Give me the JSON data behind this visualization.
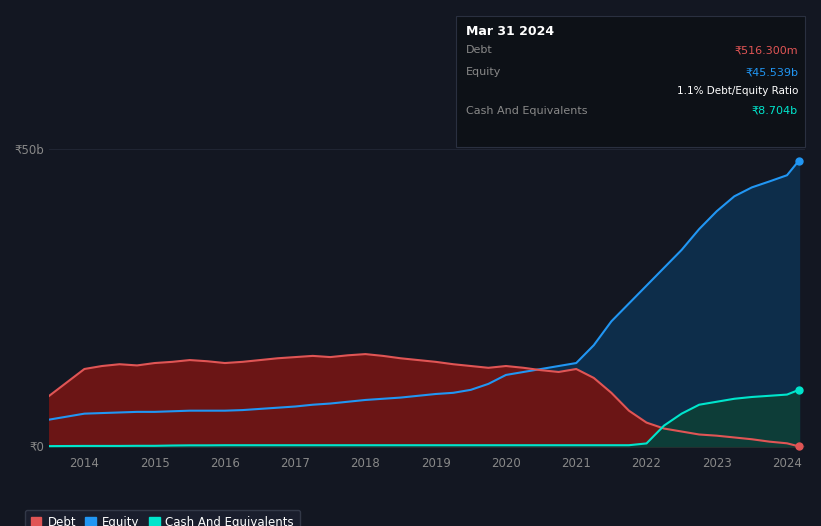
{
  "background_color": "#131722",
  "plot_bg_color": "#131722",
  "years": [
    2013.5,
    2014.0,
    2014.25,
    2014.5,
    2014.75,
    2015.0,
    2015.25,
    2015.5,
    2015.75,
    2016.0,
    2016.25,
    2016.5,
    2016.75,
    2017.0,
    2017.25,
    2017.5,
    2017.75,
    2018.0,
    2018.25,
    2018.5,
    2018.75,
    2019.0,
    2019.25,
    2019.5,
    2019.75,
    2020.0,
    2020.25,
    2020.5,
    2020.75,
    2021.0,
    2021.25,
    2021.5,
    2021.75,
    2022.0,
    2022.25,
    2022.5,
    2022.75,
    2023.0,
    2023.25,
    2023.5,
    2023.75,
    2024.0,
    2024.17
  ],
  "debt": [
    8.5,
    13.0,
    13.5,
    13.8,
    13.6,
    14.0,
    14.2,
    14.5,
    14.3,
    14.0,
    14.2,
    14.5,
    14.8,
    15.0,
    15.2,
    15.0,
    15.3,
    15.5,
    15.2,
    14.8,
    14.5,
    14.2,
    13.8,
    13.5,
    13.2,
    13.5,
    13.2,
    12.8,
    12.5,
    13.0,
    11.5,
    9.0,
    6.0,
    4.0,
    3.0,
    2.5,
    2.0,
    1.8,
    1.5,
    1.2,
    0.8,
    0.52,
    0.0
  ],
  "equity": [
    4.5,
    5.5,
    5.6,
    5.7,
    5.8,
    5.8,
    5.9,
    6.0,
    6.0,
    6.0,
    6.1,
    6.3,
    6.5,
    6.7,
    7.0,
    7.2,
    7.5,
    7.8,
    8.0,
    8.2,
    8.5,
    8.8,
    9.0,
    9.5,
    10.5,
    12.0,
    12.5,
    13.0,
    13.5,
    14.0,
    17.0,
    21.0,
    24.0,
    27.0,
    30.0,
    33.0,
    36.5,
    39.5,
    42.0,
    43.5,
    44.5,
    45.539,
    48.0
  ],
  "cash": [
    0.05,
    0.08,
    0.08,
    0.08,
    0.1,
    0.1,
    0.15,
    0.18,
    0.18,
    0.2,
    0.2,
    0.2,
    0.2,
    0.2,
    0.2,
    0.2,
    0.2,
    0.2,
    0.2,
    0.2,
    0.2,
    0.2,
    0.2,
    0.2,
    0.2,
    0.2,
    0.2,
    0.2,
    0.2,
    0.2,
    0.2,
    0.2,
    0.2,
    0.5,
    3.5,
    5.5,
    7.0,
    7.5,
    8.0,
    8.3,
    8.5,
    8.704,
    9.5
  ],
  "xlim": [
    2013.5,
    2024.25
  ],
  "ylim": [
    -1,
    52
  ],
  "ytick_positions": [
    0,
    50
  ],
  "ytick_labels": [
    "₹0",
    "₹50b"
  ],
  "xtick_positions": [
    2014,
    2015,
    2016,
    2017,
    2018,
    2019,
    2020,
    2021,
    2022,
    2023,
    2024
  ],
  "xtick_labels": [
    "2014",
    "2015",
    "2016",
    "2017",
    "2018",
    "2019",
    "2020",
    "2021",
    "2022",
    "2023",
    "2024"
  ],
  "debt_color": "#e05555",
  "equity_color": "#2196f3",
  "cash_color": "#00e5cc",
  "debt_fill": "#6b1515",
  "equity_fill": "#0d2d4a",
  "cash_fill": "#0d3d38",
  "grid_color": "#2a3040",
  "grid_alpha": 0.7,
  "tooltip_bg": "#0d1117",
  "tooltip_border": "#2a3040",
  "tooltip_title": "Mar 31 2024",
  "tooltip_debt_label": "Debt",
  "tooltip_debt_value": "₹516.300m",
  "tooltip_equity_label": "Equity",
  "tooltip_equity_value": "₹45.539b",
  "tooltip_ratio_bold": "1.1%",
  "tooltip_ratio_rest": " Debt/Equity Ratio",
  "tooltip_cash_label": "Cash And Equivalents",
  "tooltip_cash_value": "₹8.704b",
  "legend_labels": [
    "Debt",
    "Equity",
    "Cash And Equivalents"
  ],
  "legend_colors": [
    "#e05555",
    "#2196f3",
    "#00e5cc"
  ],
  "legend_bg": "#1c2030",
  "legend_border": "#3a4050"
}
